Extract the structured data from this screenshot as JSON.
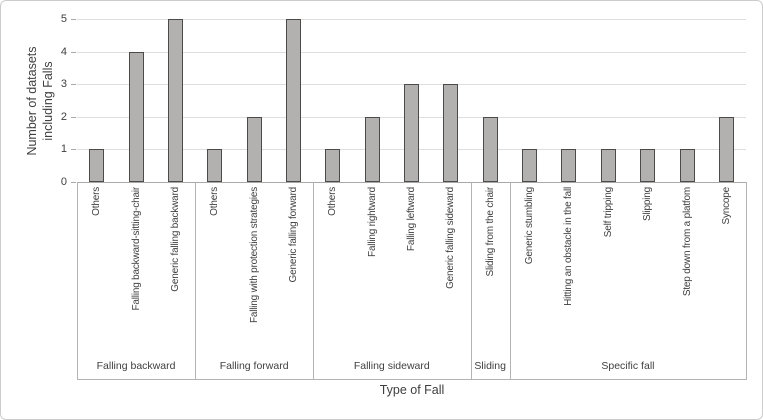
{
  "figure": {
    "y_axis_title": "Number of datasets\nincluding Falls",
    "x_axis_title": "Type of Fall"
  },
  "chart_data": {
    "type": "bar",
    "title": "",
    "xlabel": "Type of Fall",
    "ylabel": "Number of datasets including Falls",
    "ylim": [
      0,
      5
    ],
    "yticks": [
      0,
      1,
      2,
      3,
      4,
      5
    ],
    "grid": true,
    "legend": "none",
    "bar_fill_color": "#b3b0b0",
    "bar_border_color": "#4d4a4a",
    "gridline_color": "#dedede",
    "axis_color": "#a9a9a9",
    "text_color": "#3f3f3f",
    "groups": [
      {
        "label": "Falling backward",
        "categories": [
          "Others",
          "Falling backward-sitting-chair",
          "Generic falling backward"
        ],
        "values": [
          1,
          4,
          5
        ]
      },
      {
        "label": "Falling forward",
        "categories": [
          "Others",
          "Falling with protection strategies",
          "Generic falling forward"
        ],
        "values": [
          1,
          2,
          5
        ]
      },
      {
        "label": "Falling sideward",
        "categories": [
          "Others",
          "Falling rightward",
          "Falling leftward",
          "Generic falling sideward"
        ],
        "values": [
          1,
          2,
          3,
          3
        ]
      },
      {
        "label": "Sliding",
        "categories": [
          "Sliding from the chair"
        ],
        "values": [
          2
        ]
      },
      {
        "label": "Specific fall",
        "categories": [
          "Generic stumbling",
          "Hitting an obstacle in the fall",
          "Self tripping",
          "Slipping",
          "Step down from a platfom",
          "Syncope"
        ],
        "values": [
          1,
          1,
          1,
          1,
          1,
          2
        ]
      }
    ]
  }
}
